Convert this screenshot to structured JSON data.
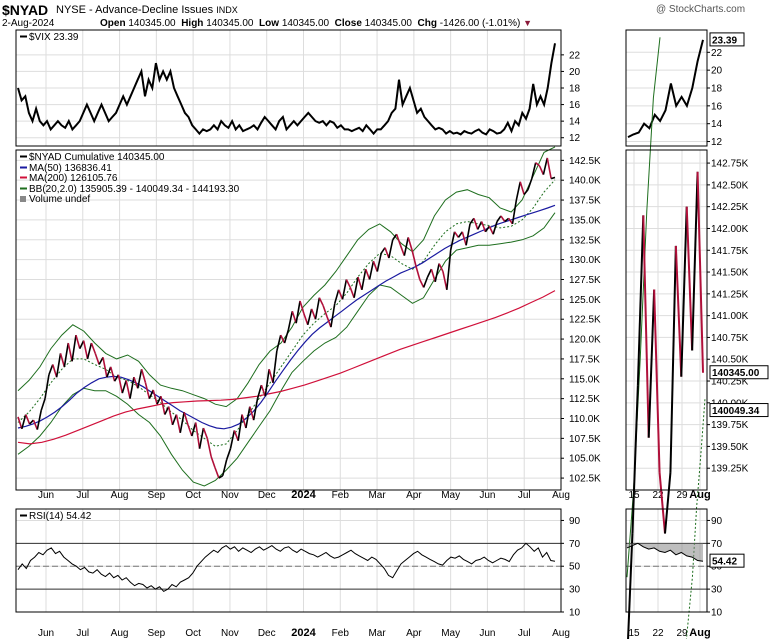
{
  "header": {
    "symbol": "$NYAD",
    "exchange_title": "NYSE - Advance-Decline Issues",
    "index_tag": "INDX",
    "date": "2-Aug-2024",
    "open_label": "Open",
    "open_value": "140345.00",
    "high_label": "High",
    "high_value": "140345.00",
    "low_label": "Low",
    "low_value": "140345.00",
    "close_label": "Close",
    "close_value": "140345.00",
    "chg_label": "Chg",
    "chg_value": "-1426.00 (-1.01%)",
    "copyright": "@ StockCharts.com"
  },
  "colors": {
    "price": "#000000",
    "down_bar": "#b0103a",
    "ma50": "#1a1aa0",
    "ma200": "#d0103a",
    "bb": "#1e6e1e",
    "bb_mid": "#1e6e1e",
    "grid": "#dddddd",
    "axis": "#000000"
  },
  "legend": {
    "vix": "$VIX 23.39",
    "nyad": "$NYAD Cumulative 140345.00",
    "ma50": "MA(50) 136836.41",
    "ma200": "MA(200) 126105.76",
    "bb": "BB(20,2.0) 135905.39 - 140049.34 - 144193.30",
    "volume": "Volume undef",
    "rsi": "RSI(14) 54.42"
  },
  "x_labels_main": [
    "Jun",
    "Jul",
    "Aug",
    "Sep",
    "Oct",
    "Nov",
    "Dec",
    "2024",
    "Feb",
    "Mar",
    "Apr",
    "May",
    "Jun",
    "Jul",
    "Aug"
  ],
  "x_labels_zoom": [
    "15",
    "22",
    "29",
    "Aug"
  ],
  "chart_data": [
    {
      "type": "line",
      "title": "$VIX 23.39",
      "ylim": [
        11,
        25
      ],
      "y_ticks": [
        "12",
        "14",
        "16",
        "18",
        "20",
        "22"
      ],
      "last_value_label": "23.39",
      "values": [
        18,
        16.5,
        17,
        15,
        14,
        15.5,
        14,
        13.5,
        14,
        13,
        13.5,
        14,
        13.5,
        13.2,
        14,
        13,
        13.5,
        14,
        15,
        16,
        15,
        14,
        15,
        16,
        15,
        14,
        14.5,
        15,
        16,
        17,
        16,
        17,
        18,
        19,
        20,
        17,
        19,
        18,
        21,
        19,
        20,
        19,
        20,
        18,
        17,
        16,
        15,
        14.5,
        13.5,
        13,
        12.5,
        13,
        12.8,
        13,
        13.5,
        13,
        14,
        13.5,
        13.2,
        14,
        13,
        13.5,
        12.8,
        13,
        13.2,
        13.5,
        13,
        13.8,
        14.5,
        14,
        13.5,
        13,
        14,
        14.5,
        13,
        13.5,
        14,
        13.5,
        14,
        14.5,
        15,
        14.5,
        14,
        13.8,
        14,
        13.5,
        14,
        13.8,
        13.2,
        13.5,
        13,
        13,
        12.8,
        13,
        13.2,
        12.8,
        13.5,
        13,
        12.5,
        13,
        13,
        13.5,
        14,
        15,
        15.5,
        19,
        16,
        17,
        18,
        16.5,
        15,
        15.5,
        14.5,
        14,
        13.5,
        13,
        13.2,
        13,
        12.5,
        12.8,
        12.5,
        12.6,
        12.4,
        12.8,
        12.6,
        12.5,
        12.8,
        13,
        12.6,
        12.4,
        13,
        12.8,
        12.5,
        12.6,
        13,
        13.8,
        12.8,
        14,
        13.5,
        15,
        14.3,
        15.5,
        18.5,
        16,
        17,
        16,
        18,
        21,
        23.39
      ],
      "zoom_values": [
        12.5,
        12.8,
        13,
        14,
        13.5,
        15,
        14.3,
        15.5,
        18.5,
        16,
        17,
        16,
        18,
        21,
        23.39
      ]
    },
    {
      "type": "line",
      "title": "$NYAD Cumulative 140345.00",
      "ylim": [
        101000,
        143800
      ],
      "y_ticks": [
        "102.5K",
        "105.0K",
        "107.5K",
        "110.0K",
        "112.5K",
        "115.0K",
        "117.5K",
        "120.0K",
        "122.5K",
        "125.0K",
        "127.5K",
        "130.0K",
        "132.5K",
        "135.0K",
        "137.5K",
        "140.0K",
        "142.5K"
      ],
      "series": [
        {
          "name": "$NYAD Cumulative",
          "values": [
            110200,
            108700,
            110500,
            109300,
            109800,
            108600,
            111000,
            112500,
            115500,
            116800,
            115200,
            118200,
            116500,
            119500,
            117200,
            120500,
            118800,
            119800,
            117500,
            119500,
            118200,
            116800,
            117700,
            115200,
            116500,
            114700,
            115500,
            113200,
            114800,
            112500,
            115200,
            113800,
            116200,
            114500,
            112500,
            113600,
            111800,
            112800,
            110500,
            111500,
            109200,
            110500,
            108200,
            110800,
            109200,
            107800,
            109500,
            106200,
            108800,
            107500,
            105200,
            103800,
            102500,
            102800,
            104800,
            106200,
            108500,
            107200,
            110500,
            108800,
            111500,
            109800,
            112500,
            114200,
            112800,
            116200,
            114500,
            118500,
            120500,
            119500,
            121200,
            123500,
            122000,
            124800,
            123200,
            121800,
            123800,
            122500,
            125200,
            124200,
            122800,
            121500,
            124500,
            126200,
            125000,
            127500,
            126500,
            125200,
            127800,
            126200,
            128800,
            127500,
            129800,
            128500,
            130800,
            131500,
            130200,
            132500,
            133200,
            131800,
            130500,
            132800,
            131200,
            129200,
            127500,
            126500,
            127800,
            128800,
            127200,
            129500,
            128500,
            126200,
            131200,
            133500,
            132800,
            133500,
            131800,
            134500,
            135200,
            133800,
            134800,
            133500,
            134200,
            133200,
            134800,
            135500,
            134800,
            135200,
            134500,
            137500,
            139800,
            138200,
            138800,
            140200,
            142200,
            141800,
            140700,
            142800,
            140200,
            140345
          ]
        },
        {
          "name": "MA(50) 136836.41",
          "values": [
            108800,
            109000,
            109300,
            109700,
            110200,
            110800,
            111500,
            112300,
            113200,
            113900,
            114500,
            115000,
            115200,
            115300,
            115200,
            114900,
            114500,
            114000,
            113400,
            112800,
            112200,
            111600,
            111000,
            110500,
            110000,
            109500,
            109100,
            108800,
            108700,
            108900,
            109300,
            110000,
            110900,
            112000,
            113300,
            114700,
            116000,
            117300,
            118500,
            119600,
            120600,
            121400,
            122100,
            122800,
            123500,
            124200,
            124900,
            125500,
            126100,
            126700,
            127300,
            127800,
            128300,
            128700,
            129100,
            129600,
            130200,
            130800,
            131400,
            131900,
            132400,
            132800,
            133200,
            133600,
            134000,
            134400,
            134700,
            135000,
            135300,
            135600,
            135900,
            136200,
            136500,
            136836
          ]
        },
        {
          "name": "MA(200) 126105.76",
          "values": [
            107000,
            106800,
            107000,
            107400,
            107900,
            108500,
            109100,
            109700,
            110300,
            110800,
            111200,
            111500,
            111800,
            112000,
            112100,
            112200,
            112250,
            112300,
            112400,
            112600,
            112800,
            113100,
            113400,
            113800,
            114200,
            114700,
            115200,
            115700,
            116300,
            116900,
            117500,
            118100,
            118700,
            119200,
            119700,
            120200,
            120700,
            121200,
            121700,
            122200,
            122700,
            123300,
            123900,
            124600,
            125300,
            126106
          ]
        },
        {
          "name": "BB(20,2.0) upper",
          "values": [
            113500,
            114800,
            116500,
            118800,
            120500,
            121800,
            121000,
            119500,
            118200,
            117500,
            118000,
            117200,
            115500,
            114200,
            113800,
            113500,
            113000,
            112500,
            111800,
            111500,
            112500,
            114500,
            116800,
            118500,
            119500,
            121500,
            124000,
            125500,
            126800,
            128500,
            130500,
            132500,
            133800,
            134500,
            133500,
            132000,
            131000,
            132500,
            135500,
            137500,
            138500,
            138800,
            138200,
            137800,
            136500,
            136000,
            137500,
            140500,
            143500,
            144193
          ]
        },
        {
          "name": "BB(20,2.0) middle",
          "values": [
            109500,
            110800,
            112500,
            114500,
            116200,
            117500,
            117500,
            116800,
            116200,
            115200,
            114800,
            114000,
            113000,
            112000,
            110800,
            109800,
            108500,
            107500,
            106500,
            106800,
            108500,
            110500,
            112500,
            114500,
            116500,
            118500,
            120500,
            122000,
            123200,
            124200,
            125800,
            127800,
            129500,
            130800,
            130500,
            129500,
            128800,
            129800,
            131800,
            133500,
            134500,
            134800,
            134500,
            134300,
            134000,
            134200,
            135000,
            136500,
            138500,
            140049
          ]
        },
        {
          "name": "BB(20,2.0) lower",
          "values": [
            105500,
            106500,
            107800,
            109500,
            111500,
            113000,
            113800,
            113500,
            113500,
            112800,
            111800,
            110500,
            109500,
            107800,
            105500,
            103500,
            102000,
            101500,
            102200,
            103500,
            105000,
            107000,
            109000,
            111000,
            113500,
            115800,
            117200,
            118500,
            119500,
            120200,
            121500,
            123500,
            125500,
            126800,
            126500,
            125500,
            124500,
            125200,
            127500,
            129800,
            131200,
            131500,
            131800,
            131800,
            132000,
            132200,
            132500,
            133000,
            134000,
            135905
          ]
        }
      ],
      "zoom_ylim": [
        139000,
        142900
      ],
      "zoom_y_ticks": [
        "139.25K",
        "139.50K",
        "139.75K",
        "140.00K",
        "140.25K",
        "140.50K",
        "140.75K",
        "141.00K",
        "141.25K",
        "141.50K",
        "141.75K",
        "142.00K",
        "142.25K",
        "142.50K",
        "142.75K"
      ],
      "zoom_values": [
        137000,
        138500,
        140200,
        142150,
        139600,
        141300,
        139200,
        138500,
        139200,
        141800,
        140300,
        142250,
        140600,
        142650,
        140345
      ],
      "zoom_bb_upper": [
        138000,
        139000,
        140500,
        142200,
        143500,
        144193
      ],
      "zoom_bb_middle": [
        137000,
        137500,
        138000,
        138800,
        139400,
        140049
      ],
      "last_value_label": "140345.00",
      "bb_mid_label": "140049.34"
    },
    {
      "type": "line",
      "title": "RSI(14) 54.42",
      "ylim": [
        10,
        100
      ],
      "y_ticks": [
        "10",
        "30",
        "50",
        "70",
        "90"
      ],
      "overbought": 70,
      "oversold": 30,
      "values": [
        47,
        52,
        48,
        55,
        58,
        62,
        60,
        64,
        66,
        61,
        63,
        58,
        55,
        52,
        50,
        47,
        49,
        45,
        44,
        47,
        43,
        41,
        44,
        40,
        42,
        38,
        40,
        36,
        33,
        35,
        34,
        31,
        33,
        30,
        32,
        28,
        30,
        34,
        32,
        36,
        38,
        40,
        44,
        50,
        54,
        58,
        61,
        64,
        62,
        66,
        68,
        65,
        67,
        63,
        66,
        64,
        62,
        65,
        67,
        64,
        66,
        68,
        65,
        63,
        66,
        67,
        64,
        62,
        65,
        63,
        61,
        60,
        58,
        60,
        62,
        59,
        57,
        58,
        60,
        62,
        64,
        61,
        59,
        57,
        55,
        58,
        56,
        52,
        48,
        42,
        40,
        46,
        52,
        55,
        58,
        61,
        63,
        60,
        58,
        56,
        54,
        52,
        51,
        55,
        58,
        57,
        59,
        56,
        54,
        52,
        55,
        56,
        58,
        55,
        53,
        55,
        57,
        56,
        54,
        60,
        64,
        66,
        70,
        67,
        63,
        66,
        58,
        62,
        55,
        54.42
      ],
      "zoom_values": [
        66,
        68,
        70,
        67,
        65,
        66,
        63,
        62,
        64,
        60,
        62,
        59,
        58,
        55,
        54.42
      ],
      "last_value_label": "54.42"
    }
  ]
}
